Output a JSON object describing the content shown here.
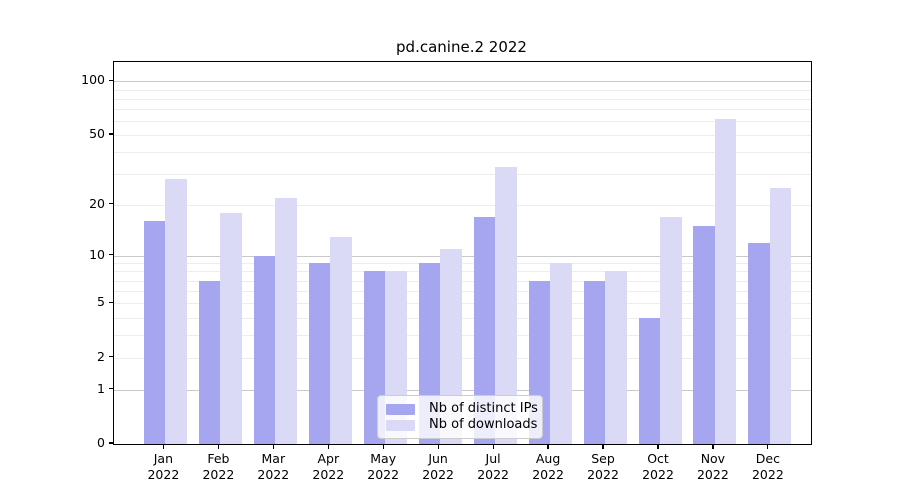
{
  "title": "pd.canine.2 2022",
  "chart_data": {
    "type": "bar",
    "title": "pd.canine.2 2022",
    "categories": [
      "Jan",
      "Feb",
      "Mar",
      "Apr",
      "May",
      "Jun",
      "Jul",
      "Aug",
      "Sep",
      "Oct",
      "Nov",
      "Dec"
    ],
    "year": "2022",
    "series": [
      {
        "name": "Nb of distinct IPs",
        "color": "#a5a5f0",
        "values": [
          16,
          7,
          10,
          9,
          8,
          9,
          17,
          7,
          7,
          4,
          15,
          12
        ]
      },
      {
        "name": "Nb of downloads",
        "color": "#dadaf6",
        "values": [
          28,
          18,
          22,
          13,
          8,
          11,
          33,
          9,
          8,
          17,
          62,
          25
        ]
      }
    ],
    "xlabel": "",
    "ylabel": "",
    "yscale": "log1p",
    "ylim": [
      0,
      128
    ],
    "yticks": [
      0,
      1,
      2,
      5,
      10,
      20,
      50,
      100
    ],
    "gridlines_major": [
      1,
      10,
      100
    ],
    "gridlines_minor": [
      2,
      3,
      4,
      5,
      6,
      7,
      8,
      9,
      20,
      30,
      40,
      50,
      60,
      70,
      80,
      90
    ],
    "grid": "on",
    "legend_position": "bottom-center-inside"
  },
  "legend": {
    "items": [
      {
        "label": "Nb of distinct IPs",
        "color": "#a5a5f0"
      },
      {
        "label": "Nb of downloads",
        "color": "#dadaf6"
      }
    ]
  },
  "colors": {
    "bar_ips": "#a5a5f0",
    "bar_downloads": "#dadaf6",
    "grid_major": "#c9c9c9",
    "grid_minor": "#ededed",
    "spine": "#000000",
    "background": "#ffffff"
  }
}
